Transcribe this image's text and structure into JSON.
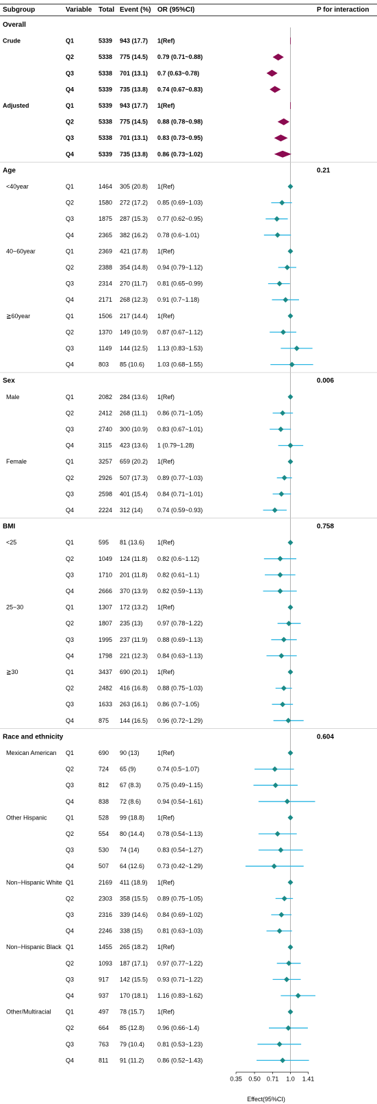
{
  "chart_data": {
    "type": "forest",
    "headers": {
      "subgroup": "Subgroup",
      "variable": "Variable",
      "total": "Total",
      "event": "Event (%)",
      "or": "OR (95%CI)",
      "p": "P for interaction"
    },
    "xlabel": "Effect(95%CI)",
    "x_ticks": [
      "0.35",
      "0.50",
      "0.71",
      "1.0",
      "1.41"
    ],
    "x_scale": "log2",
    "xlim": [
      0.35,
      1.62
    ],
    "reference_line": 1.0,
    "colors": {
      "overall_marker": "#8b0a50",
      "subgroup_marker": "#1a8a87",
      "subgroup_ci": "#29b6e3",
      "ref_line": "#b0b0b0"
    },
    "rows": [
      {
        "kind": "section",
        "label": "Overall"
      },
      {
        "kind": "data",
        "overall": true,
        "subgroup": "Crude",
        "variable": "Q1",
        "total": "5339",
        "event": "943 (17.7)",
        "or_text": "1(Ref)",
        "or": 1.0,
        "lo": 1.0,
        "hi": 1.0,
        "ref": true
      },
      {
        "kind": "data",
        "overall": true,
        "subgroup": "",
        "variable": "Q2",
        "total": "5338",
        "event": "775 (14.5)",
        "or_text": "0.79 (0.71~0.88)",
        "or": 0.79,
        "lo": 0.71,
        "hi": 0.88
      },
      {
        "kind": "data",
        "overall": true,
        "subgroup": "",
        "variable": "Q3",
        "total": "5338",
        "event": "701 (13.1)",
        "or_text": "0.7 (0.63~0.78)",
        "or": 0.7,
        "lo": 0.63,
        "hi": 0.78
      },
      {
        "kind": "data",
        "overall": true,
        "subgroup": "",
        "variable": "Q4",
        "total": "5339",
        "event": "735 (13.8)",
        "or_text": "0.74 (0.67~0.83)",
        "or": 0.74,
        "lo": 0.67,
        "hi": 0.83
      },
      {
        "kind": "data",
        "overall": true,
        "subgroup": "Adjusted",
        "variable": "Q1",
        "total": "5339",
        "event": "943 (17.7)",
        "or_text": "1(Ref)",
        "or": 1.0,
        "lo": 1.0,
        "hi": 1.0,
        "ref": true
      },
      {
        "kind": "data",
        "overall": true,
        "subgroup": "",
        "variable": "Q2",
        "total": "5338",
        "event": "775 (14.5)",
        "or_text": "0.88 (0.78~0.98)",
        "or": 0.88,
        "lo": 0.78,
        "hi": 0.98
      },
      {
        "kind": "data",
        "overall": true,
        "subgroup": "",
        "variable": "Q3",
        "total": "5338",
        "event": "701 (13.1)",
        "or_text": "0.83 (0.73~0.95)",
        "or": 0.83,
        "lo": 0.73,
        "hi": 0.95
      },
      {
        "kind": "data",
        "overall": true,
        "subgroup": "",
        "variable": "Q4",
        "total": "5339",
        "event": "735 (13.8)",
        "or_text": "0.86 (0.73~1.02)",
        "or": 0.86,
        "lo": 0.73,
        "hi": 1.02
      },
      {
        "kind": "section",
        "label": "Age",
        "p": "0.21"
      },
      {
        "kind": "data",
        "subgroup": "<40year",
        "variable": "Q1",
        "total": "1464",
        "event": "305 (20.8)",
        "or_text": "1(Ref)",
        "or": 1.0,
        "lo": 1.0,
        "hi": 1.0,
        "ref": true
      },
      {
        "kind": "data",
        "subgroup": "",
        "variable": "Q2",
        "total": "1580",
        "event": "272 (17.2)",
        "or_text": "0.85 (0.69~1.03)",
        "or": 0.85,
        "lo": 0.69,
        "hi": 1.03
      },
      {
        "kind": "data",
        "subgroup": "",
        "variable": "Q3",
        "total": "1875",
        "event": "287 (15.3)",
        "or_text": "0.77 (0.62~0.95)",
        "or": 0.77,
        "lo": 0.62,
        "hi": 0.95
      },
      {
        "kind": "data",
        "subgroup": "",
        "variable": "Q4",
        "total": "2365",
        "event": "382 (16.2)",
        "or_text": "0.78 (0.6~1.01)",
        "or": 0.78,
        "lo": 0.6,
        "hi": 1.01
      },
      {
        "kind": "data",
        "subgroup": "40~60year",
        "variable": "Q1",
        "total": "2369",
        "event": "421 (17.8)",
        "or_text": "1(Ref)",
        "or": 1.0,
        "lo": 1.0,
        "hi": 1.0,
        "ref": true
      },
      {
        "kind": "data",
        "subgroup": "",
        "variable": "Q2",
        "total": "2388",
        "event": "354 (14.8)",
        "or_text": "0.94 (0.79~1.12)",
        "or": 0.94,
        "lo": 0.79,
        "hi": 1.12
      },
      {
        "kind": "data",
        "subgroup": "",
        "variable": "Q3",
        "total": "2314",
        "event": "270 (11.7)",
        "or_text": "0.81 (0.65~0.99)",
        "or": 0.81,
        "lo": 0.65,
        "hi": 0.99
      },
      {
        "kind": "data",
        "subgroup": "",
        "variable": "Q4",
        "total": "2171",
        "event": "268 (12.3)",
        "or_text": "0.91 (0.7~1.18)",
        "or": 0.91,
        "lo": 0.7,
        "hi": 1.18
      },
      {
        "kind": "data",
        "subgroup": "≧60year",
        "variable": "Q1",
        "total": "1506",
        "event": "217 (14.4)",
        "or_text": "1(Ref)",
        "or": 1.0,
        "lo": 1.0,
        "hi": 1.0,
        "ref": true
      },
      {
        "kind": "data",
        "subgroup": "",
        "variable": "Q2",
        "total": "1370",
        "event": "149 (10.9)",
        "or_text": "0.87 (0.67~1.12)",
        "or": 0.87,
        "lo": 0.67,
        "hi": 1.12
      },
      {
        "kind": "data",
        "subgroup": "",
        "variable": "Q3",
        "total": "1149",
        "event": "144 (12.5)",
        "or_text": "1.13 (0.83~1.53)",
        "or": 1.13,
        "lo": 0.83,
        "hi": 1.53
      },
      {
        "kind": "data",
        "subgroup": "",
        "variable": "Q4",
        "total": "803",
        "event": "85 (10.6)",
        "or_text": "1.03 (0.68~1.55)",
        "or": 1.03,
        "lo": 0.68,
        "hi": 1.55
      },
      {
        "kind": "section",
        "label": "Sex",
        "p": "0.006"
      },
      {
        "kind": "data",
        "subgroup": "Male",
        "variable": "Q1",
        "total": "2082",
        "event": "284 (13.6)",
        "or_text": "1(Ref)",
        "or": 1.0,
        "lo": 1.0,
        "hi": 1.0,
        "ref": true
      },
      {
        "kind": "data",
        "subgroup": "",
        "variable": "Q2",
        "total": "2412",
        "event": "268 (11.1)",
        "or_text": "0.86 (0.71~1.05)",
        "or": 0.86,
        "lo": 0.71,
        "hi": 1.05
      },
      {
        "kind": "data",
        "subgroup": "",
        "variable": "Q3",
        "total": "2740",
        "event": "300 (10.9)",
        "or_text": "0.83 (0.67~1.01)",
        "or": 0.83,
        "lo": 0.67,
        "hi": 1.01
      },
      {
        "kind": "data",
        "subgroup": "",
        "variable": "Q4",
        "total": "3115",
        "event": "423 (13.6)",
        "or_text": "1 (0.79~1.28)",
        "or": 1.0,
        "lo": 0.79,
        "hi": 1.28
      },
      {
        "kind": "data",
        "subgroup": "Female",
        "variable": "Q1",
        "total": "3257",
        "event": "659 (20.2)",
        "or_text": "1(Ref)",
        "or": 1.0,
        "lo": 1.0,
        "hi": 1.0,
        "ref": true
      },
      {
        "kind": "data",
        "subgroup": "",
        "variable": "Q2",
        "total": "2926",
        "event": "507 (17.3)",
        "or_text": "0.89 (0.77~1.03)",
        "or": 0.89,
        "lo": 0.77,
        "hi": 1.03
      },
      {
        "kind": "data",
        "subgroup": "",
        "variable": "Q3",
        "total": "2598",
        "event": "401 (15.4)",
        "or_text": "0.84 (0.71~1.01)",
        "or": 0.84,
        "lo": 0.71,
        "hi": 1.01
      },
      {
        "kind": "data",
        "subgroup": "",
        "variable": "Q4",
        "total": "2224",
        "event": "312 (14)",
        "or_text": "0.74 (0.59~0.93)",
        "or": 0.74,
        "lo": 0.59,
        "hi": 0.93
      },
      {
        "kind": "section",
        "label": "BMI",
        "p": "0.758"
      },
      {
        "kind": "data",
        "subgroup": "<25",
        "variable": "Q1",
        "total": "595",
        "event": "81 (13.6)",
        "or_text": "1(Ref)",
        "or": 1.0,
        "lo": 1.0,
        "hi": 1.0,
        "ref": true
      },
      {
        "kind": "data",
        "subgroup": "",
        "variable": "Q2",
        "total": "1049",
        "event": "124 (11.8)",
        "or_text": "0.82 (0.6~1.12)",
        "or": 0.82,
        "lo": 0.6,
        "hi": 1.12
      },
      {
        "kind": "data",
        "subgroup": "",
        "variable": "Q3",
        "total": "1710",
        "event": "201 (11.8)",
        "or_text": "0.82 (0.61~1.1)",
        "or": 0.82,
        "lo": 0.61,
        "hi": 1.1
      },
      {
        "kind": "data",
        "subgroup": "",
        "variable": "Q4",
        "total": "2666",
        "event": "370 (13.9)",
        "or_text": "0.82 (0.59~1.13)",
        "or": 0.82,
        "lo": 0.59,
        "hi": 1.13
      },
      {
        "kind": "data",
        "subgroup": "25~30",
        "variable": "Q1",
        "total": "1307",
        "event": "172 (13.2)",
        "or_text": "1(Ref)",
        "or": 1.0,
        "lo": 1.0,
        "hi": 1.0,
        "ref": true
      },
      {
        "kind": "data",
        "subgroup": "",
        "variable": "Q2",
        "total": "1807",
        "event": "235 (13)",
        "or_text": "0.97 (0.78~1.22)",
        "or": 0.97,
        "lo": 0.78,
        "hi": 1.22
      },
      {
        "kind": "data",
        "subgroup": "",
        "variable": "Q3",
        "total": "1995",
        "event": "237 (11.9)",
        "or_text": "0.88 (0.69~1.13)",
        "or": 0.88,
        "lo": 0.69,
        "hi": 1.13
      },
      {
        "kind": "data",
        "subgroup": "",
        "variable": "Q4",
        "total": "1798",
        "event": "221 (12.3)",
        "or_text": "0.84 (0.63~1.13)",
        "or": 0.84,
        "lo": 0.63,
        "hi": 1.13
      },
      {
        "kind": "data",
        "subgroup": "≧30",
        "variable": "Q1",
        "total": "3437",
        "event": "690 (20.1)",
        "or_text": "1(Ref)",
        "or": 1.0,
        "lo": 1.0,
        "hi": 1.0,
        "ref": true
      },
      {
        "kind": "data",
        "subgroup": "",
        "variable": "Q2",
        "total": "2482",
        "event": "416 (16.8)",
        "or_text": "0.88 (0.75~1.03)",
        "or": 0.88,
        "lo": 0.75,
        "hi": 1.03
      },
      {
        "kind": "data",
        "subgroup": "",
        "variable": "Q3",
        "total": "1633",
        "event": "263 (16.1)",
        "or_text": "0.86 (0.7~1.05)",
        "or": 0.86,
        "lo": 0.7,
        "hi": 1.05
      },
      {
        "kind": "data",
        "subgroup": "",
        "variable": "Q4",
        "total": "875",
        "event": "144 (16.5)",
        "or_text": "0.96 (0.72~1.29)",
        "or": 0.96,
        "lo": 0.72,
        "hi": 1.29
      },
      {
        "kind": "section",
        "label": "Race and ethnicity",
        "p": "0.604"
      },
      {
        "kind": "data",
        "subgroup": "Mexican American",
        "variable": "Q1",
        "total": "690",
        "event": "90 (13)",
        "or_text": "1(Ref)",
        "or": 1.0,
        "lo": 1.0,
        "hi": 1.0,
        "ref": true
      },
      {
        "kind": "data",
        "subgroup": "",
        "variable": "Q2",
        "total": "724",
        "event": "65 (9)",
        "or_text": "0.74 (0.5~1.07)",
        "or": 0.74,
        "lo": 0.5,
        "hi": 1.07
      },
      {
        "kind": "data",
        "subgroup": "",
        "variable": "Q3",
        "total": "812",
        "event": "67 (8.3)",
        "or_text": "0.75 (0.49~1.15)",
        "or": 0.75,
        "lo": 0.49,
        "hi": 1.15
      },
      {
        "kind": "data",
        "subgroup": "",
        "variable": "Q4",
        "total": "838",
        "event": "72 (8.6)",
        "or_text": "0.94 (0.54~1.61)",
        "or": 0.94,
        "lo": 0.54,
        "hi": 1.61
      },
      {
        "kind": "data",
        "subgroup": "Other Hispanic",
        "variable": "Q1",
        "total": "528",
        "event": "99 (18.8)",
        "or_text": "1(Ref)",
        "or": 1.0,
        "lo": 1.0,
        "hi": 1.0,
        "ref": true
      },
      {
        "kind": "data",
        "subgroup": "",
        "variable": "Q2",
        "total": "554",
        "event": "80 (14.4)",
        "or_text": "0.78 (0.54~1.13)",
        "or": 0.78,
        "lo": 0.54,
        "hi": 1.13
      },
      {
        "kind": "data",
        "subgroup": "",
        "variable": "Q3",
        "total": "530",
        "event": "74 (14)",
        "or_text": "0.83 (0.54~1.27)",
        "or": 0.83,
        "lo": 0.54,
        "hi": 1.27
      },
      {
        "kind": "data",
        "subgroup": "",
        "variable": "Q4",
        "total": "507",
        "event": "64 (12.6)",
        "or_text": "0.73 (0.42~1.29)",
        "or": 0.73,
        "lo": 0.42,
        "hi": 1.29
      },
      {
        "kind": "data",
        "subgroup": "Non−Hispanic White",
        "variable": "Q1",
        "total": "2169",
        "event": "411 (18.9)",
        "or_text": "1(Ref)",
        "or": 1.0,
        "lo": 1.0,
        "hi": 1.0,
        "ref": true
      },
      {
        "kind": "data",
        "subgroup": "",
        "variable": "Q2",
        "total": "2303",
        "event": "358 (15.5)",
        "or_text": "0.89 (0.75~1.05)",
        "or": 0.89,
        "lo": 0.75,
        "hi": 1.05
      },
      {
        "kind": "data",
        "subgroup": "",
        "variable": "Q3",
        "total": "2316",
        "event": "339 (14.6)",
        "or_text": "0.84 (0.69~1.02)",
        "or": 0.84,
        "lo": 0.69,
        "hi": 1.02
      },
      {
        "kind": "data",
        "subgroup": "",
        "variable": "Q4",
        "total": "2246",
        "event": "338 (15)",
        "or_text": "0.81 (0.63~1.03)",
        "or": 0.81,
        "lo": 0.63,
        "hi": 1.03
      },
      {
        "kind": "data",
        "subgroup": "Non−Hispanic Black",
        "variable": "Q1",
        "total": "1455",
        "event": "265 (18.2)",
        "or_text": "1(Ref)",
        "or": 1.0,
        "lo": 1.0,
        "hi": 1.0,
        "ref": true
      },
      {
        "kind": "data",
        "subgroup": "",
        "variable": "Q2",
        "total": "1093",
        "event": "187 (17.1)",
        "or_text": "0.97 (0.77~1.22)",
        "or": 0.97,
        "lo": 0.77,
        "hi": 1.22
      },
      {
        "kind": "data",
        "subgroup": "",
        "variable": "Q3",
        "total": "917",
        "event": "142 (15.5)",
        "or_text": "0.93 (0.71~1.22)",
        "or": 0.93,
        "lo": 0.71,
        "hi": 1.22
      },
      {
        "kind": "data",
        "subgroup": "",
        "variable": "Q4",
        "total": "937",
        "event": "170 (18.1)",
        "or_text": "1.16 (0.83~1.62)",
        "or": 1.16,
        "lo": 0.83,
        "hi": 1.62
      },
      {
        "kind": "data",
        "subgroup": "Other/Multiracial",
        "variable": "Q1",
        "total": "497",
        "event": "78 (15.7)",
        "or_text": "1(Ref)",
        "or": 1.0,
        "lo": 1.0,
        "hi": 1.0,
        "ref": true
      },
      {
        "kind": "data",
        "subgroup": "",
        "variable": "Q2",
        "total": "664",
        "event": "85 (12.8)",
        "or_text": "0.96 (0.66~1.4)",
        "or": 0.96,
        "lo": 0.66,
        "hi": 1.4
      },
      {
        "kind": "data",
        "subgroup": "",
        "variable": "Q3",
        "total": "763",
        "event": "79 (10.4)",
        "or_text": "0.81 (0.53~1.23)",
        "or": 0.81,
        "lo": 0.53,
        "hi": 1.23
      },
      {
        "kind": "data",
        "subgroup": "",
        "variable": "Q4",
        "total": "811",
        "event": "91 (11.2)",
        "or_text": "0.86 (0.52~1.43)",
        "or": 0.86,
        "lo": 0.52,
        "hi": 1.43
      }
    ]
  }
}
